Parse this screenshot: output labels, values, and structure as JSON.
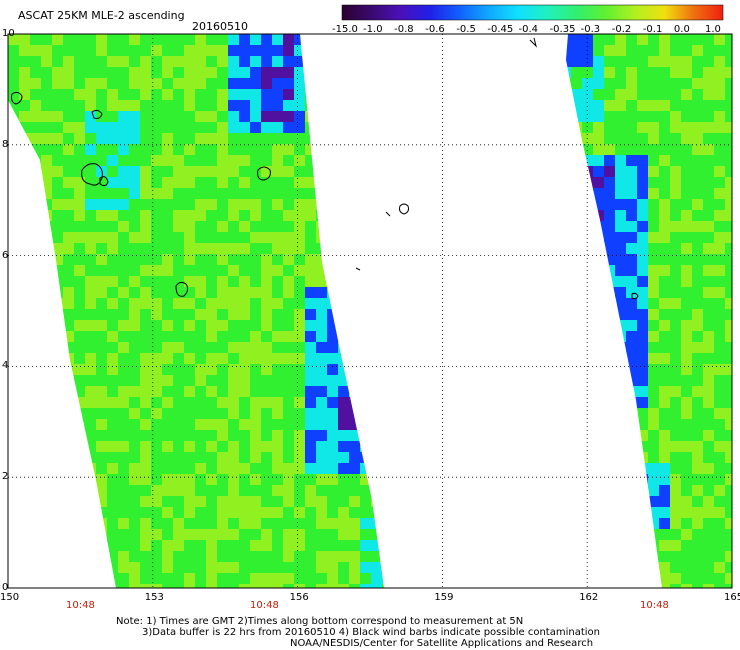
{
  "header": {
    "title": "ASCAT 25KM MLE-2 ascending",
    "date": "20160510"
  },
  "colorbar": {
    "labels": [
      "-15.0",
      "-1.0",
      "-0.8",
      "-0.6",
      "-0.5",
      "-0.45",
      "-0.4",
      "-0.35",
      "-0.3",
      "-0.2",
      "-0.1",
      "0.0",
      "1.0"
    ],
    "colors": [
      "#2a0030",
      "#3a0a6e",
      "#4a10b8",
      "#2020e8",
      "#1060ff",
      "#10a8ff",
      "#10e0ff",
      "#20f0c0",
      "#30f070",
      "#60f030",
      "#b0f020",
      "#f0e010",
      "#f07010",
      "#f02010"
    ]
  },
  "axes": {
    "x_ticks": [
      "150",
      "153",
      "156",
      "159",
      "162",
      "165"
    ],
    "y_ticks": [
      "10",
      "8",
      "6",
      "4",
      "2",
      "0"
    ]
  },
  "times": [
    "10:48",
    "10:48",
    "10:48"
  ],
  "notes": {
    "line1": "Note: 1) Times are GMT 2)Times along bottom correspond to measurement at 5N",
    "line2": "3)Data buffer is 22 hrs from 20160510 4) Black wind barbs indicate possible contamination",
    "line3": "NOAA/NESDIS/Center for Satellite Applications and Research"
  },
  "palette": {
    "green": "#30f030",
    "lime": "#90f020",
    "cyan": "#10e8e8",
    "blue": "#1040ff",
    "purple": "#5010a0"
  }
}
